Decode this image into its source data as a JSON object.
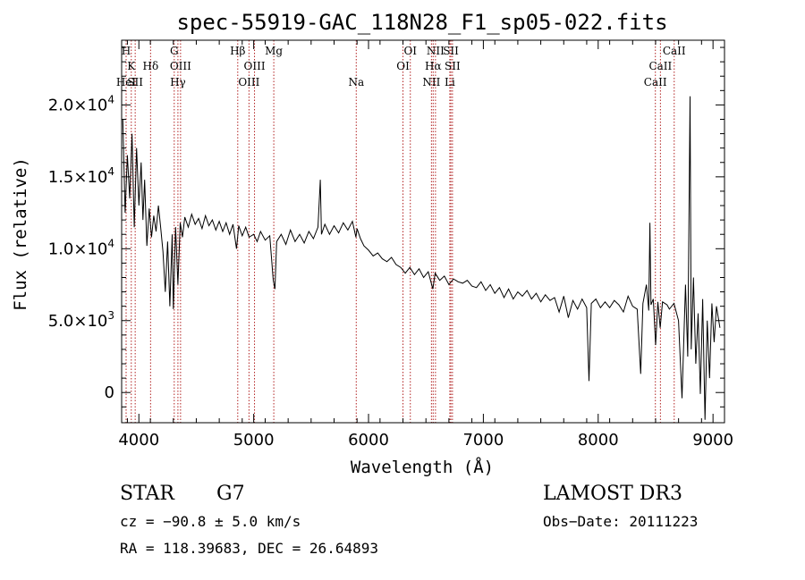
{
  "chart_data": {
    "type": "line",
    "title": "spec-55919-GAC_118N28_F1_sp05-022.fits",
    "xlabel": "Wavelength (Å)",
    "ylabel": "Flux (relative)",
    "xlim": [
      3850,
      9100
    ],
    "ylim": [
      -2100,
      24500
    ],
    "xticks": [
      {
        "value": 4000,
        "label": "4000"
      },
      {
        "value": 5000,
        "label": "5000"
      },
      {
        "value": 6000,
        "label": "6000"
      },
      {
        "value": 7000,
        "label": "7000"
      },
      {
        "value": 8000,
        "label": "8000"
      },
      {
        "value": 9000,
        "label": "9000"
      }
    ],
    "yticks": [
      {
        "value": 0,
        "base": "0",
        "exp": ""
      },
      {
        "value": 5000,
        "base": "5.0×10",
        "exp": "3"
      },
      {
        "value": 10000,
        "base": "1.0×10",
        "exp": "4"
      },
      {
        "value": 15000,
        "base": "1.5×10",
        "exp": "4"
      },
      {
        "value": 20000,
        "base": "2.0×10",
        "exp": "4"
      }
    ],
    "series": [
      {
        "name": "flux",
        "points": [
          [
            3860,
            19000
          ],
          [
            3880,
            12500
          ],
          [
            3900,
            16500
          ],
          [
            3920,
            13500
          ],
          [
            3940,
            18000
          ],
          [
            3960,
            11500
          ],
          [
            3980,
            17000
          ],
          [
            4000,
            13000
          ],
          [
            4020,
            16000
          ],
          [
            4035,
            12000
          ],
          [
            4050,
            14800
          ],
          [
            4070,
            10200
          ],
          [
            4090,
            12800
          ],
          [
            4110,
            10800
          ],
          [
            4130,
            12300
          ],
          [
            4150,
            11200
          ],
          [
            4170,
            13000
          ],
          [
            4190,
            11500
          ],
          [
            4210,
            9800
          ],
          [
            4230,
            7000
          ],
          [
            4250,
            10500
          ],
          [
            4270,
            6000
          ],
          [
            4290,
            11000
          ],
          [
            4300,
            5800
          ],
          [
            4320,
            11500
          ],
          [
            4340,
            7500
          ],
          [
            4360,
            11800
          ],
          [
            4380,
            10800
          ],
          [
            4400,
            12200
          ],
          [
            4430,
            11500
          ],
          [
            4460,
            12400
          ],
          [
            4490,
            11700
          ],
          [
            4520,
            12100
          ],
          [
            4550,
            11400
          ],
          [
            4580,
            12300
          ],
          [
            4610,
            11600
          ],
          [
            4640,
            12000
          ],
          [
            4670,
            11300
          ],
          [
            4700,
            11900
          ],
          [
            4730,
            11200
          ],
          [
            4760,
            11800
          ],
          [
            4790,
            11000
          ],
          [
            4820,
            11700
          ],
          [
            4850,
            10000
          ],
          [
            4870,
            11600
          ],
          [
            4900,
            10900
          ],
          [
            4930,
            11500
          ],
          [
            4960,
            10800
          ],
          [
            5000,
            11000
          ],
          [
            5030,
            10500
          ],
          [
            5060,
            11200
          ],
          [
            5100,
            10600
          ],
          [
            5140,
            10900
          ],
          [
            5170,
            7800
          ],
          [
            5185,
            7200
          ],
          [
            5200,
            10500
          ],
          [
            5240,
            11000
          ],
          [
            5280,
            10300
          ],
          [
            5320,
            11300
          ],
          [
            5360,
            10500
          ],
          [
            5400,
            11000
          ],
          [
            5440,
            10400
          ],
          [
            5480,
            11200
          ],
          [
            5520,
            10700
          ],
          [
            5560,
            11500
          ],
          [
            5580,
            14800
          ],
          [
            5590,
            11000
          ],
          [
            5620,
            11700
          ],
          [
            5660,
            11000
          ],
          [
            5700,
            11600
          ],
          [
            5740,
            11100
          ],
          [
            5780,
            11800
          ],
          [
            5820,
            11300
          ],
          [
            5860,
            11900
          ],
          [
            5890,
            10800
          ],
          [
            5900,
            11400
          ],
          [
            5930,
            10700
          ],
          [
            5960,
            10200
          ],
          [
            6000,
            9900
          ],
          [
            6040,
            9500
          ],
          [
            6080,
            9700
          ],
          [
            6120,
            9300
          ],
          [
            6160,
            9100
          ],
          [
            6200,
            9400
          ],
          [
            6240,
            8900
          ],
          [
            6280,
            8700
          ],
          [
            6320,
            8300
          ],
          [
            6360,
            8700
          ],
          [
            6400,
            8200
          ],
          [
            6440,
            8600
          ],
          [
            6480,
            8000
          ],
          [
            6520,
            8400
          ],
          [
            6560,
            7200
          ],
          [
            6580,
            8300
          ],
          [
            6620,
            7800
          ],
          [
            6660,
            8100
          ],
          [
            6700,
            7500
          ],
          [
            6740,
            7900
          ],
          [
            6780,
            7700
          ],
          [
            6820,
            7600
          ],
          [
            6860,
            7800
          ],
          [
            6900,
            7400
          ],
          [
            6940,
            7300
          ],
          [
            6980,
            7700
          ],
          [
            7020,
            7100
          ],
          [
            7060,
            7500
          ],
          [
            7100,
            6900
          ],
          [
            7140,
            7300
          ],
          [
            7180,
            6600
          ],
          [
            7220,
            7200
          ],
          [
            7260,
            6500
          ],
          [
            7300,
            7000
          ],
          [
            7340,
            6700
          ],
          [
            7380,
            7100
          ],
          [
            7420,
            6500
          ],
          [
            7460,
            6900
          ],
          [
            7500,
            6300
          ],
          [
            7540,
            6800
          ],
          [
            7580,
            6400
          ],
          [
            7620,
            6600
          ],
          [
            7660,
            5600
          ],
          [
            7700,
            6700
          ],
          [
            7740,
            5200
          ],
          [
            7780,
            6400
          ],
          [
            7820,
            5800
          ],
          [
            7860,
            6500
          ],
          [
            7900,
            5900
          ],
          [
            7920,
            800
          ],
          [
            7940,
            6200
          ],
          [
            7980,
            6500
          ],
          [
            8020,
            5900
          ],
          [
            8060,
            6300
          ],
          [
            8100,
            5900
          ],
          [
            8140,
            6400
          ],
          [
            8180,
            6100
          ],
          [
            8220,
            5600
          ],
          [
            8260,
            6700
          ],
          [
            8300,
            6000
          ],
          [
            8340,
            5800
          ],
          [
            8370,
            1300
          ],
          [
            8390,
            6200
          ],
          [
            8420,
            7500
          ],
          [
            8440,
            5700
          ],
          [
            8450,
            11800
          ],
          [
            8460,
            6100
          ],
          [
            8480,
            6500
          ],
          [
            8500,
            3300
          ],
          [
            8520,
            6300
          ],
          [
            8540,
            4500
          ],
          [
            8560,
            6300
          ],
          [
            8600,
            6100
          ],
          [
            8620,
            5800
          ],
          [
            8660,
            6200
          ],
          [
            8700,
            5000
          ],
          [
            8730,
            -400
          ],
          [
            8760,
            7500
          ],
          [
            8780,
            2500
          ],
          [
            8800,
            20600
          ],
          [
            8810,
            3000
          ],
          [
            8830,
            8000
          ],
          [
            8850,
            2000
          ],
          [
            8870,
            5500
          ],
          [
            8890,
            -100
          ],
          [
            8910,
            6500
          ],
          [
            8930,
            -1900
          ],
          [
            8950,
            5000
          ],
          [
            8970,
            1000
          ],
          [
            8990,
            6200
          ],
          [
            9010,
            3500
          ],
          [
            9030,
            6000
          ],
          [
            9060,
            4500
          ]
        ]
      }
    ],
    "lines": [
      {
        "wavelength": 3889,
        "label": "H",
        "row": 0
      },
      {
        "wavelength": 3934,
        "label": "K",
        "row": 1
      },
      {
        "wavelength": 3889,
        "label": "HeI",
        "row": 2
      },
      {
        "wavelength": 3968,
        "label": "SII",
        "row": 2
      },
      {
        "wavelength": 4102,
        "label": "Hδ",
        "row": 1
      },
      {
        "wavelength": 4308,
        "label": "G",
        "row": 0
      },
      {
        "wavelength": 4363,
        "label": "OIII",
        "row": 1
      },
      {
        "wavelength": 4340,
        "label": "Hγ",
        "row": 2
      },
      {
        "wavelength": 4861,
        "label": "Hβ",
        "row": 0
      },
      {
        "wavelength": 5007,
        "label": "OIII",
        "row": 1
      },
      {
        "wavelength": 4959,
        "label": "OIII",
        "row": 2
      },
      {
        "wavelength": 5175,
        "label": "Mg",
        "row": 0
      },
      {
        "wavelength": 5893,
        "label": "Na",
        "row": 2
      },
      {
        "wavelength": 6364,
        "label": "OI",
        "row": 0
      },
      {
        "wavelength": 6300,
        "label": "OI",
        "row": 1
      },
      {
        "wavelength": 6583,
        "label": "NII",
        "row": 0
      },
      {
        "wavelength": 6563,
        "label": "Hα",
        "row": 1
      },
      {
        "wavelength": 6548,
        "label": "NII",
        "row": 2
      },
      {
        "wavelength": 6717,
        "label": "SII",
        "row": 0
      },
      {
        "wavelength": 6731,
        "label": "SII",
        "row": 1
      },
      {
        "wavelength": 6708,
        "label": "Li",
        "row": 2
      },
      {
        "wavelength": 8662,
        "label": "CaII",
        "row": 0
      },
      {
        "wavelength": 8542,
        "label": "CaII",
        "row": 1
      },
      {
        "wavelength": 8498,
        "label": "CaII",
        "row": 2
      }
    ]
  },
  "info": {
    "class": "STAR",
    "subclass": "G7",
    "survey": "LAMOST DR3",
    "cz": "cz = −90.8 ± 5.0 km/s",
    "obs_date": "Obs−Date: 20111223",
    "coords": "RA = 118.39683, DEC =  26.64893"
  },
  "colors": {
    "spectrum": "#000000",
    "line_markers": "#b22222",
    "axes": "#000000"
  }
}
